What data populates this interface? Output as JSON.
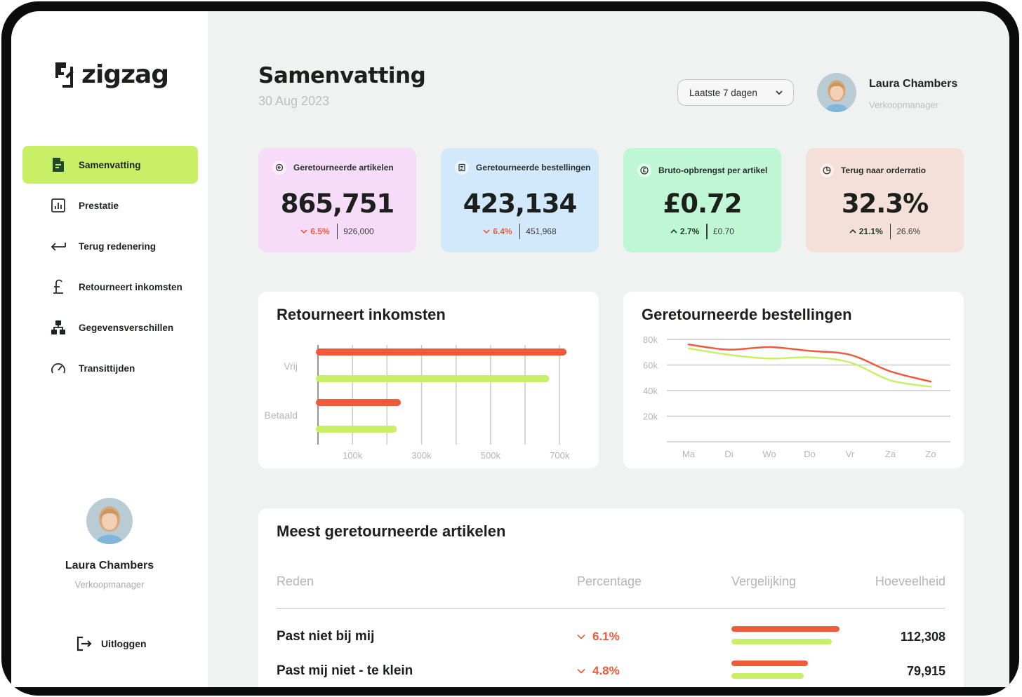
{
  "app": {
    "name": "zigzag"
  },
  "colors": {
    "accent": "#c8ef66",
    "red": "#ef5a3a",
    "green": "#c8ef66"
  },
  "sidebar": {
    "items": [
      {
        "label": "Samenvatting",
        "icon": "document-icon",
        "active": true
      },
      {
        "label": "Prestatie",
        "icon": "bar-chart-icon",
        "active": false
      },
      {
        "label": "Terug redenering",
        "icon": "return-arrow-icon",
        "active": false
      },
      {
        "label": "Retourneert inkomsten",
        "icon": "pound-icon",
        "active": false
      },
      {
        "label": "Gegevensverschillen",
        "icon": "hierarchy-icon",
        "active": false
      },
      {
        "label": "Transittijden",
        "icon": "speedometer-icon",
        "active": false
      }
    ],
    "user": {
      "name": "Laura Chambers",
      "role": "Verkoopmanager"
    },
    "logout": "Uitloggen"
  },
  "header": {
    "title": "Samenvatting",
    "date": "30 Aug 2023",
    "range": "Laatste 7 dagen",
    "user": {
      "name": "Laura Chambers",
      "role": "Verkoopmanager"
    }
  },
  "kpis": [
    {
      "title": "Geretourneerde artikelen",
      "value": "865,751",
      "change": "6.5%",
      "direction": "down",
      "previous": "926,000",
      "bg": "#f6dcf9",
      "icon": "return-item-icon"
    },
    {
      "title": "Geretourneerde bestellingen",
      "value": "423,134",
      "change": "6.4%",
      "direction": "down",
      "previous": "451,968",
      "bg": "#d2e9fb",
      "icon": "order-list-icon"
    },
    {
      "title": "Bruto-opbrengst per artikel",
      "value": "£0.72",
      "change": "2.7%",
      "direction": "up",
      "previous": "£0.70",
      "bg": "#bff7d4",
      "icon": "pound-coin-icon"
    },
    {
      "title": "Terug naar orderratio",
      "value": "32.3%",
      "change": "21.1%",
      "direction": "up",
      "previous": "26.6%",
      "bg": "#f4e0d9",
      "icon": "pie-icon"
    }
  ],
  "chart_data": [
    {
      "type": "bar",
      "orientation": "horizontal",
      "title": "Retourneert inkomsten",
      "categories": [
        "Vrij",
        "Betaald"
      ],
      "series": [
        {
          "name": "red",
          "color": "#ef5a3a",
          "values": [
            710000,
            230000
          ]
        },
        {
          "name": "green",
          "color": "#c8ef66",
          "values": [
            660000,
            218000
          ]
        }
      ],
      "xticks": [
        "100k",
        "300k",
        "500k",
        "700k"
      ],
      "xlim": [
        0,
        730000
      ]
    },
    {
      "type": "line",
      "title": "Geretourneerde bestellingen",
      "categories": [
        "Ma",
        "Di",
        "Wo",
        "Do",
        "Vr",
        "Za",
        "Zo"
      ],
      "series": [
        {
          "name": "red",
          "color": "#ef5a3a",
          "values": [
            76000,
            72000,
            74000,
            71000,
            68000,
            55000,
            47000
          ]
        },
        {
          "name": "green",
          "color": "#c8ef66",
          "values": [
            73000,
            68000,
            65000,
            66000,
            62000,
            48000,
            43000
          ]
        }
      ],
      "yticks": [
        "20k",
        "40k",
        "60k",
        "80k"
      ],
      "ylim": [
        0,
        80000
      ]
    }
  ],
  "table": {
    "title": "Meest geretourneerde artikelen",
    "headers": {
      "reason": "Reden",
      "percentage": "Percentage",
      "comparison": "Vergelijking",
      "quantity": "Hoeveelheid"
    },
    "rows": [
      {
        "reason": "Past niet bij mij",
        "percentage": "6.1%",
        "cmp_red": 1.0,
        "cmp_green": 0.93,
        "quantity": "112,308"
      },
      {
        "reason": "Past mij niet - te klein",
        "percentage": "4.8%",
        "cmp_red": 0.71,
        "cmp_green": 0.67,
        "quantity": "79,915"
      }
    ]
  }
}
